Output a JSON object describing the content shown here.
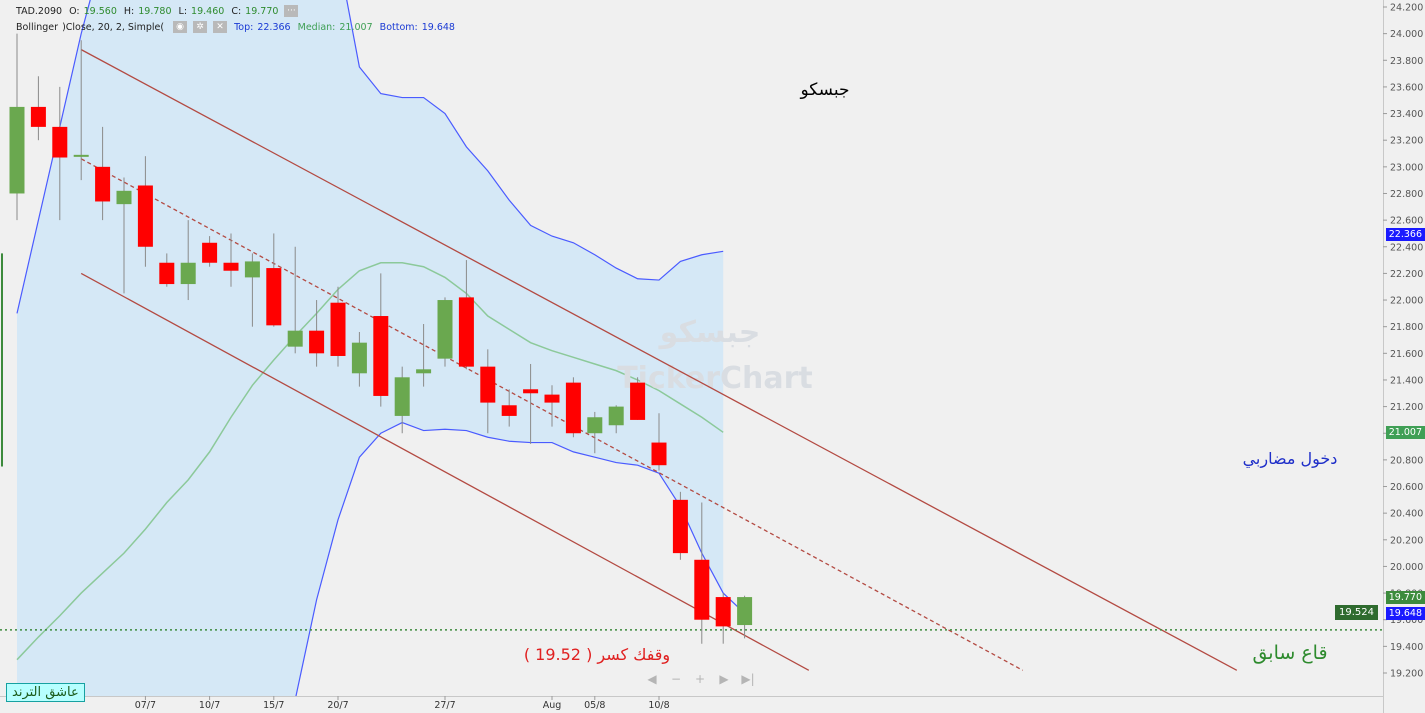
{
  "header": {
    "symbol": "TAD.2090",
    "ohlc": [
      {
        "label": "O:",
        "value": "19.560"
      },
      {
        "label": "H:",
        "value": "19.780"
      },
      {
        "label": "L:",
        "value": "19.460"
      },
      {
        "label": "C:",
        "value": "19.770"
      }
    ],
    "indicator": "Bollinger",
    "indicator_params": ")Close, 20, 2, Simple(",
    "bands": [
      {
        "label": "Top:",
        "value": "22.366"
      },
      {
        "label": "Median:",
        "value": "21.007"
      },
      {
        "label": "Bottom:",
        "value": "19.648"
      }
    ],
    "buttons": [
      "more-button",
      "visibility-button",
      "settings-button",
      "close-button"
    ]
  },
  "annotations": {
    "company_name": "جبسكو",
    "watermark_ar": "جبسكو",
    "watermark_en": "TickerChart",
    "entry_note": "دخول مضاربي",
    "stop_note": "وقفك كسر ( 19.52 )",
    "prior_low": "قاع سابق",
    "brand": "عاشق الترند"
  },
  "nav_controls": [
    "nav-back",
    "zoom-out",
    "zoom-in",
    "nav-forward",
    "nav-end"
  ],
  "price_tags": [
    {
      "value": "22.366",
      "color": "#1a1aff"
    },
    {
      "value": "21.007",
      "color": "#3f9f55"
    },
    {
      "value": "19.770",
      "color": "#3d8b3d"
    },
    {
      "value": "19.648",
      "color": "#1a1aff"
    }
  ],
  "level_tag": "19.524",
  "chart_data": {
    "type": "candlestick",
    "y_range": [
      19.1,
      24.25
    ],
    "y_ticks": [
      "24.200",
      "24.000",
      "23.800",
      "23.600",
      "23.400",
      "23.200",
      "23.000",
      "22.800",
      "22.600",
      "22.400",
      "22.200",
      "22.000",
      "21.800",
      "21.600",
      "21.400",
      "21.200",
      "21.000",
      "20.800",
      "20.600",
      "20.400",
      "20.200",
      "20.000",
      "19.800",
      "19.600",
      "19.400",
      "19.200"
    ],
    "x_labels": [
      {
        "label": "07/7",
        "index": 6
      },
      {
        "label": "10/7",
        "index": 9
      },
      {
        "label": "15/7",
        "index": 12
      },
      {
        "label": "20/7",
        "index": 15
      },
      {
        "label": "27/7",
        "index": 20
      },
      {
        "label": "Aug",
        "index": 25
      },
      {
        "label": "05/8",
        "index": 27
      },
      {
        "label": "10/8",
        "index": 30
      }
    ],
    "candles": [
      {
        "o": 22.8,
        "h": 24.0,
        "l": 22.6,
        "c": 23.45
      },
      {
        "o": 23.45,
        "h": 23.68,
        "l": 23.2,
        "c": 23.3
      },
      {
        "o": 23.3,
        "h": 23.6,
        "l": 22.6,
        "c": 23.07
      },
      {
        "o": 23.08,
        "h": 23.95,
        "l": 22.9,
        "c": 23.09
      },
      {
        "o": 23.0,
        "h": 23.3,
        "l": 22.6,
        "c": 22.74
      },
      {
        "o": 22.72,
        "h": 22.92,
        "l": 22.05,
        "c": 22.82
      },
      {
        "o": 22.86,
        "h": 23.08,
        "l": 22.25,
        "c": 22.4
      },
      {
        "o": 22.28,
        "h": 22.35,
        "l": 22.1,
        "c": 22.12
      },
      {
        "o": 22.12,
        "h": 22.6,
        "l": 22.0,
        "c": 22.28
      },
      {
        "o": 22.43,
        "h": 22.48,
        "l": 22.25,
        "c": 22.28
      },
      {
        "o": 22.28,
        "h": 22.5,
        "l": 22.1,
        "c": 22.22
      },
      {
        "o": 22.17,
        "h": 22.35,
        "l": 21.8,
        "c": 22.29
      },
      {
        "o": 22.24,
        "h": 22.5,
        "l": 21.8,
        "c": 21.81
      },
      {
        "o": 21.65,
        "h": 22.4,
        "l": 21.6,
        "c": 21.77
      },
      {
        "o": 21.77,
        "h": 22.0,
        "l": 21.5,
        "c": 21.6
      },
      {
        "o": 21.98,
        "h": 22.1,
        "l": 21.5,
        "c": 21.58
      },
      {
        "o": 21.45,
        "h": 21.76,
        "l": 21.35,
        "c": 21.68
      },
      {
        "o": 21.88,
        "h": 22.2,
        "l": 21.2,
        "c": 21.28
      },
      {
        "o": 21.13,
        "h": 21.5,
        "l": 21.0,
        "c": 21.42
      },
      {
        "o": 21.45,
        "h": 21.82,
        "l": 21.35,
        "c": 21.48
      },
      {
        "o": 21.56,
        "h": 22.02,
        "l": 21.5,
        "c": 22.0
      },
      {
        "o": 22.02,
        "h": 22.3,
        "l": 21.48,
        "c": 21.5
      },
      {
        "o": 21.5,
        "h": 21.63,
        "l": 21.0,
        "c": 21.23
      },
      {
        "o": 21.21,
        "h": 21.33,
        "l": 21.05,
        "c": 21.13
      },
      {
        "o": 21.33,
        "h": 21.52,
        "l": 20.92,
        "c": 21.3
      },
      {
        "o": 21.29,
        "h": 21.36,
        "l": 21.05,
        "c": 21.23
      },
      {
        "o": 21.38,
        "h": 21.42,
        "l": 20.97,
        "c": 21.0
      },
      {
        "o": 21.0,
        "h": 21.16,
        "l": 20.85,
        "c": 21.12
      },
      {
        "o": 21.06,
        "h": 21.21,
        "l": 21.0,
        "c": 21.2
      },
      {
        "o": 21.38,
        "h": 21.42,
        "l": 21.1,
        "c": 21.1
      },
      {
        "o": 20.93,
        "h": 21.15,
        "l": 20.72,
        "c": 20.76
      },
      {
        "o": 20.5,
        "h": 20.56,
        "l": 20.05,
        "c": 20.1
      },
      {
        "o": 20.05,
        "h": 20.48,
        "l": 19.42,
        "c": 19.6
      },
      {
        "o": 19.77,
        "h": 19.8,
        "l": 19.42,
        "c": 19.55
      },
      {
        "o": 19.56,
        "h": 19.78,
        "l": 19.46,
        "c": 19.77
      }
    ],
    "bollinger": {
      "upper": [
        {
          "i": 0,
          "v": 21.9
        },
        {
          "i": 1,
          "v": 22.6
        },
        {
          "i": 2,
          "v": 23.3
        },
        {
          "i": 3,
          "v": 24.0
        },
        {
          "i": 4,
          "v": 24.6
        },
        {
          "i": 15,
          "v": 24.6
        },
        {
          "i": 16,
          "v": 23.75
        },
        {
          "i": 17,
          "v": 23.55
        },
        {
          "i": 18,
          "v": 23.52
        },
        {
          "i": 19,
          "v": 23.52
        },
        {
          "i": 20,
          "v": 23.4
        },
        {
          "i": 21,
          "v": 23.15
        },
        {
          "i": 22,
          "v": 22.97
        },
        {
          "i": 23,
          "v": 22.75
        },
        {
          "i": 24,
          "v": 22.56
        },
        {
          "i": 25,
          "v": 22.48
        },
        {
          "i": 26,
          "v": 22.43
        },
        {
          "i": 27,
          "v": 22.34
        },
        {
          "i": 28,
          "v": 22.24
        },
        {
          "i": 29,
          "v": 22.16
        },
        {
          "i": 30,
          "v": 22.15
        },
        {
          "i": 31,
          "v": 22.29
        },
        {
          "i": 32,
          "v": 22.34
        },
        {
          "i": 33,
          "v": 22.366
        }
      ],
      "middle": [
        {
          "i": 0,
          "v": 19.3
        },
        {
          "i": 1,
          "v": 19.47
        },
        {
          "i": 2,
          "v": 19.63
        },
        {
          "i": 3,
          "v": 19.8
        },
        {
          "i": 4,
          "v": 19.95
        },
        {
          "i": 5,
          "v": 20.1
        },
        {
          "i": 6,
          "v": 20.28
        },
        {
          "i": 7,
          "v": 20.48
        },
        {
          "i": 8,
          "v": 20.65
        },
        {
          "i": 9,
          "v": 20.86
        },
        {
          "i": 10,
          "v": 21.12
        },
        {
          "i": 11,
          "v": 21.36
        },
        {
          "i": 12,
          "v": 21.55
        },
        {
          "i": 13,
          "v": 21.73
        },
        {
          "i": 14,
          "v": 21.9
        },
        {
          "i": 15,
          "v": 22.08
        },
        {
          "i": 16,
          "v": 22.22
        },
        {
          "i": 17,
          "v": 22.28
        },
        {
          "i": 18,
          "v": 22.28
        },
        {
          "i": 19,
          "v": 22.25
        },
        {
          "i": 20,
          "v": 22.17
        },
        {
          "i": 21,
          "v": 22.05
        },
        {
          "i": 22,
          "v": 21.88
        },
        {
          "i": 23,
          "v": 21.78
        },
        {
          "i": 24,
          "v": 21.68
        },
        {
          "i": 25,
          "v": 21.62
        },
        {
          "i": 26,
          "v": 21.57
        },
        {
          "i": 27,
          "v": 21.52
        },
        {
          "i": 28,
          "v": 21.47
        },
        {
          "i": 29,
          "v": 21.4
        },
        {
          "i": 30,
          "v": 21.32
        },
        {
          "i": 31,
          "v": 21.22
        },
        {
          "i": 32,
          "v": 21.12
        },
        {
          "i": 33,
          "v": 21.007
        }
      ],
      "lower": [
        {
          "i": 13,
          "v": 19.0
        },
        {
          "i": 14,
          "v": 19.75
        },
        {
          "i": 15,
          "v": 20.35
        },
        {
          "i": 16,
          "v": 20.82
        },
        {
          "i": 17,
          "v": 21.0
        },
        {
          "i": 18,
          "v": 21.08
        },
        {
          "i": 19,
          "v": 21.02
        },
        {
          "i": 20,
          "v": 21.03
        },
        {
          "i": 21,
          "v": 21.02
        },
        {
          "i": 22,
          "v": 20.97
        },
        {
          "i": 23,
          "v": 20.94
        },
        {
          "i": 24,
          "v": 20.93
        },
        {
          "i": 25,
          "v": 20.93
        },
        {
          "i": 26,
          "v": 20.86
        },
        {
          "i": 27,
          "v": 20.82
        },
        {
          "i": 28,
          "v": 20.78
        },
        {
          "i": 29,
          "v": 20.76
        },
        {
          "i": 30,
          "v": 20.7
        },
        {
          "i": 31,
          "v": 20.45
        },
        {
          "i": 32,
          "v": 20.1
        },
        {
          "i": 33,
          "v": 19.8
        },
        {
          "i": 34,
          "v": 19.648
        }
      ]
    },
    "channel": {
      "upper": [
        {
          "i": 3,
          "v": 23.88
        },
        {
          "i": 57,
          "v": 19.22
        }
      ],
      "middle": [
        {
          "i": 3,
          "v": 23.06
        },
        {
          "i": 47,
          "v": 19.22
        }
      ],
      "lower": [
        {
          "i": 3,
          "v": 22.2
        },
        {
          "i": 37,
          "v": 19.22
        }
      ]
    },
    "support_level": 19.524,
    "colors": {
      "up": "#6aa84f",
      "down": "#ff0000",
      "band_fill": "#d5e8f6",
      "band_line": "#4a5bff",
      "median_line": "#8cc99a",
      "channel": "#b34a42",
      "support": "#3c8a3c"
    }
  }
}
